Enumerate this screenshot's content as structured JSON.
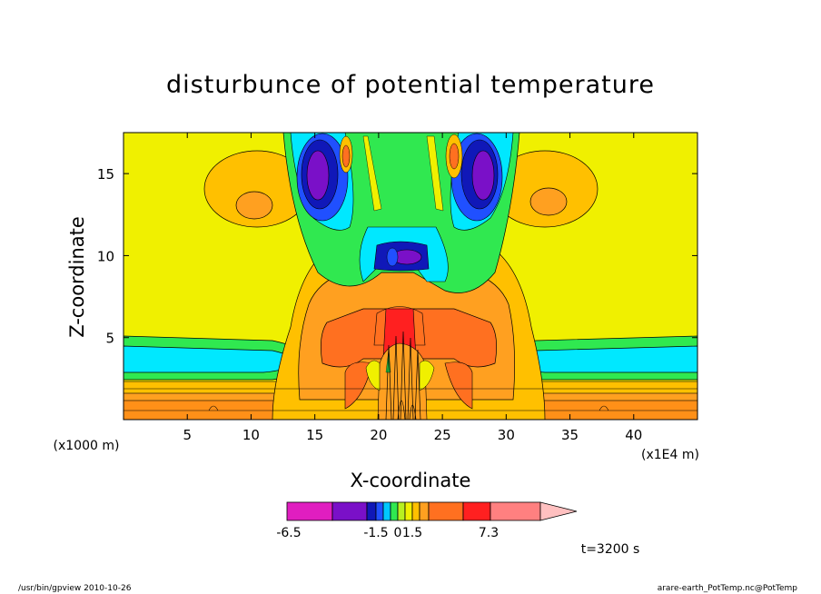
{
  "chart_data": {
    "type": "heatmap",
    "title": "disturbunce of potential temperature",
    "xlabel": "X-coordinate",
    "ylabel": "Z-coordinate",
    "x_unit_label": "(x1E4 m)",
    "y_unit_label": "(x1000 m)",
    "xlim": [
      0,
      45
    ],
    "ylim": [
      0,
      17.5
    ],
    "x_ticks": [
      5,
      10,
      15,
      20,
      25,
      30,
      35,
      40
    ],
    "y_ticks": [
      5,
      10,
      15
    ],
    "colorbar": {
      "colors": [
        "#e01ec0",
        "#7a10c8",
        "#1018b8",
        "#2050ff",
        "#00c8ff",
        "#30e850",
        "#b8f020",
        "#f0f000",
        "#ffc000",
        "#ffa020",
        "#ff7020",
        "#ff2020",
        "#ff8080",
        "#ffc0c0"
      ],
      "labels": [
        "-6.5",
        "-1.5",
        "0",
        "1.5",
        "7.3"
      ],
      "label_values": [
        -6.5,
        -1.5,
        0,
        1.5,
        7.3
      ]
    },
    "time_label": "t=3200 s",
    "grid": false
  },
  "footer": {
    "left": "/usr/bin/gpview   2010-10-26",
    "right": "arare-earth_PotTemp.nc@PotTemp"
  }
}
